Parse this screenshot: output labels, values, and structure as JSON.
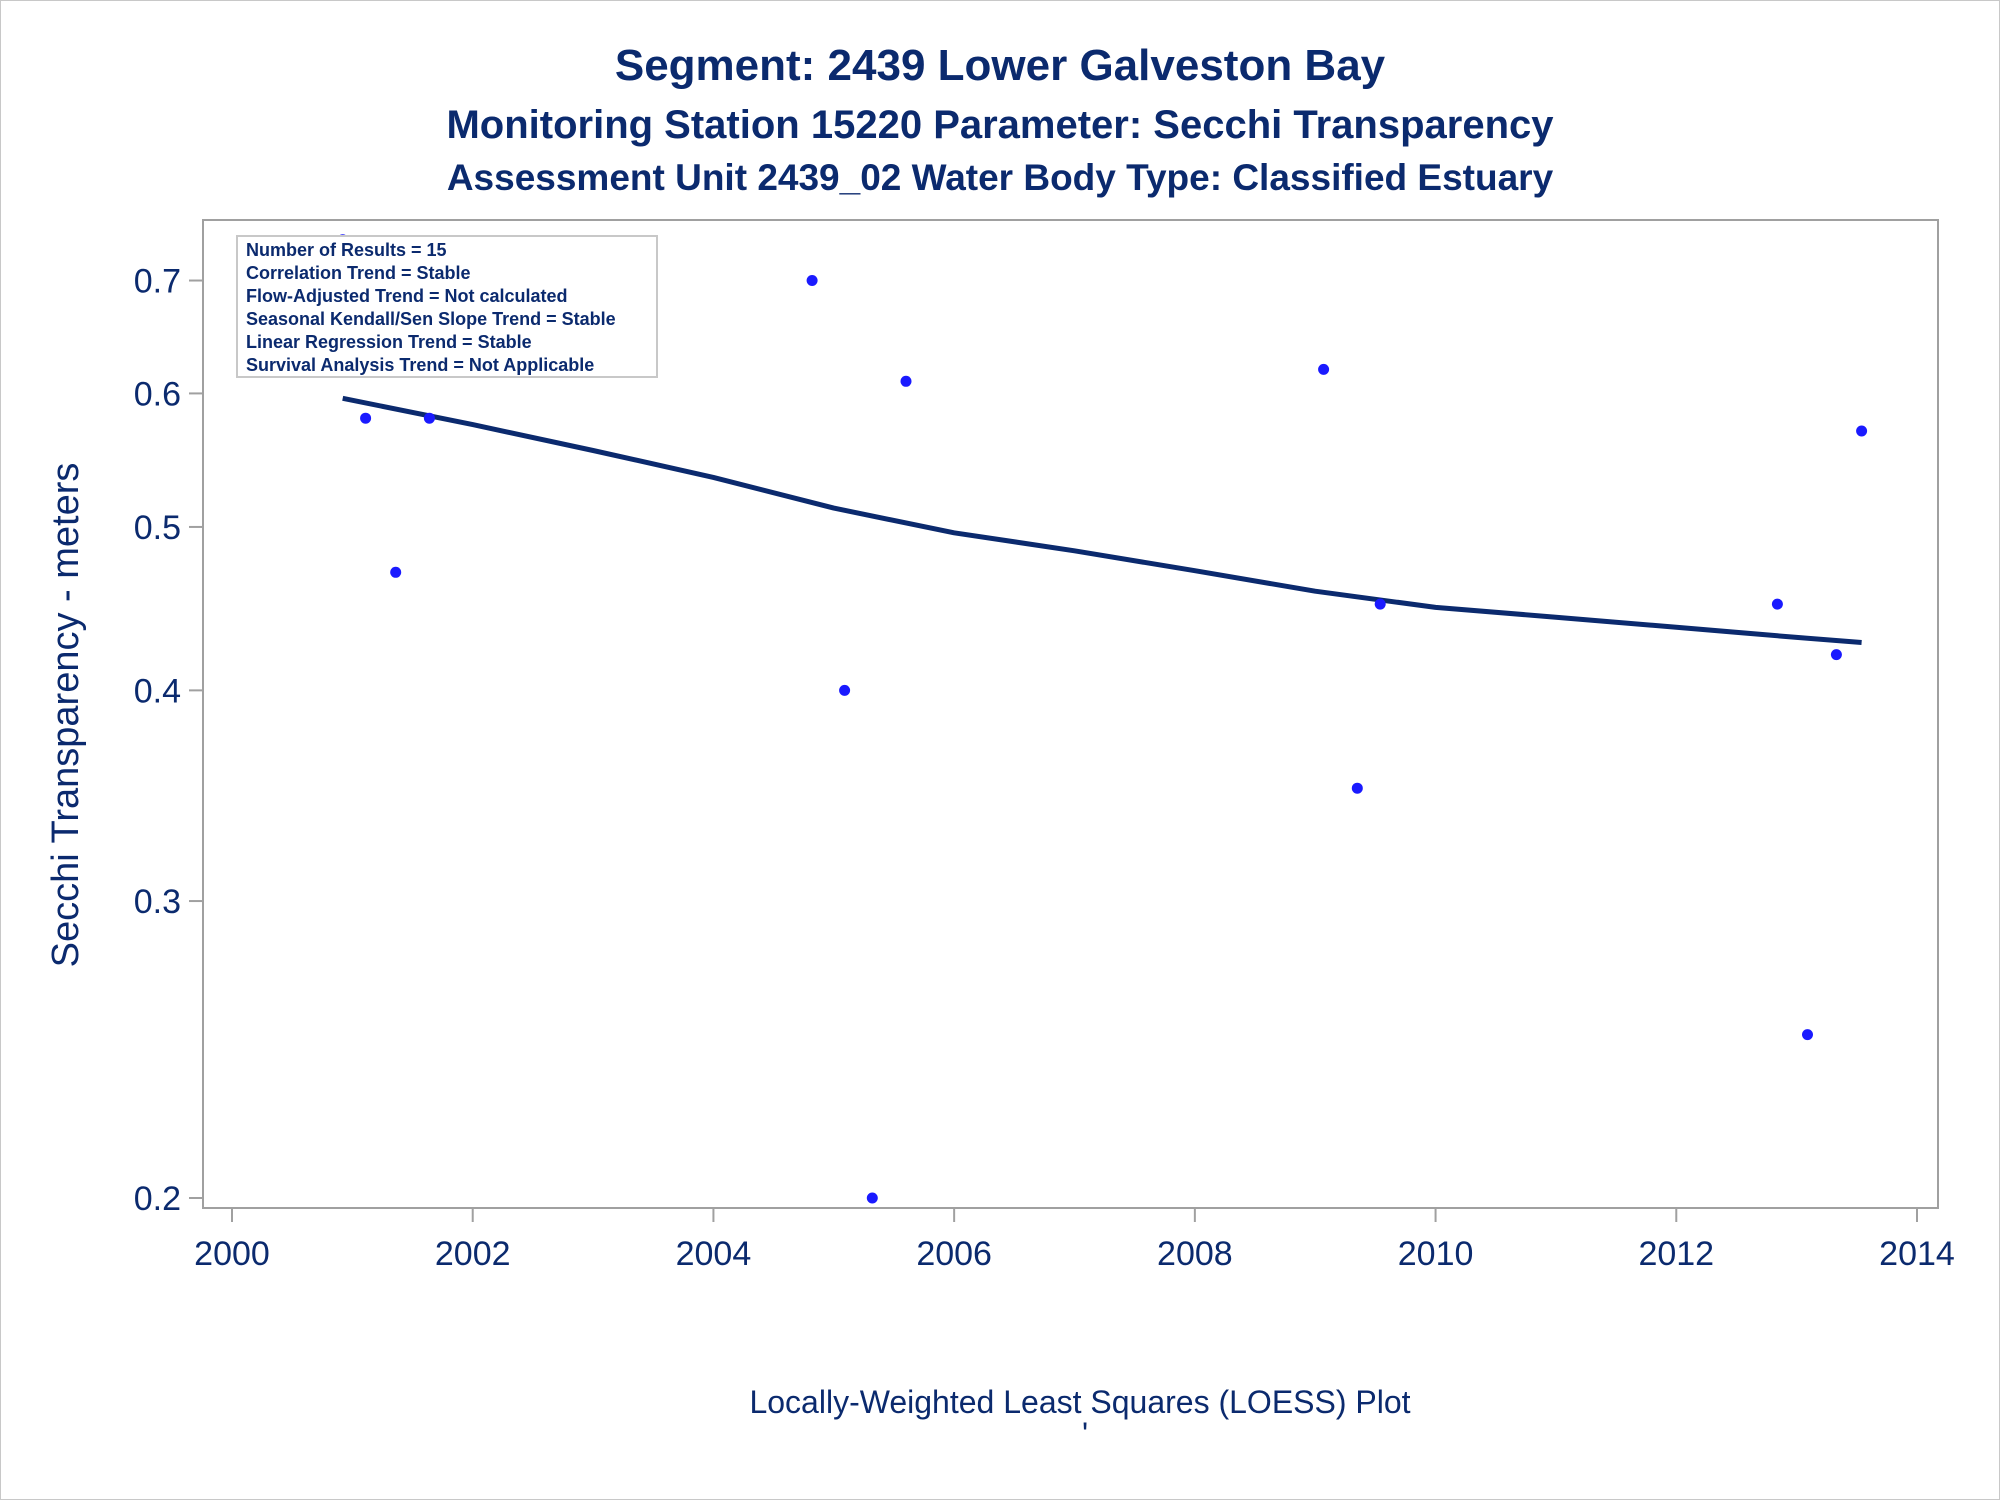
{
  "titles": {
    "line1": "Segment: 2439  Lower Galveston Bay",
    "line2": "Monitoring Station 15220 Parameter: Secchi Transparency",
    "line3": "Assessment Unit 2439_02   Water Body Type: Classified Estuary"
  },
  "stats_box": [
    "Number of Results = 15",
    "Correlation Trend = Stable",
    "Flow-Adjusted Trend = Not calculated",
    "Seasonal Kendall/Sen Slope Trend = Stable",
    "Linear Regression Trend = Stable",
    "Survival Analysis Trend = Not Applicable"
  ],
  "footnote": "Locally-Weighted Least Squares (LOESS) Plot",
  "footnote_mark": "'",
  "colors": {
    "text": "#0b2a6e",
    "points": "#1a1aff",
    "loess_line": "#0b2a6e",
    "frame": "#a0a0a0"
  },
  "chart_data": {
    "type": "scatter",
    "xlabel": "",
    "ylabel": "Secchi Transparency - meters",
    "y_scale": "log",
    "xlim": [
      2000,
      2014
    ],
    "ylim": [
      0.2,
      0.75
    ],
    "xticks": [
      2000,
      2002,
      2004,
      2006,
      2008,
      2010,
      2012,
      2014
    ],
    "xtick_labels": [
      "2000",
      "2002",
      "2004",
      "2006",
      "2008",
      "2010",
      "2012",
      "2014"
    ],
    "yticks": [
      0.2,
      0.3,
      0.4,
      0.5,
      0.6,
      0.7
    ],
    "ytick_labels": [
      "0.2",
      "0.3",
      "0.4",
      "0.5",
      "0.6",
      "0.7"
    ],
    "grid": false,
    "series": [
      {
        "type": "scatter",
        "points": [
          {
            "x": 2000.92,
            "y": 0.74
          },
          {
            "x": 2001.11,
            "y": 0.58
          },
          {
            "x": 2001.36,
            "y": 0.47
          },
          {
            "x": 2001.64,
            "y": 0.58
          },
          {
            "x": 2004.82,
            "y": 0.7
          },
          {
            "x": 2005.09,
            "y": 0.4
          },
          {
            "x": 2005.32,
            "y": 0.2
          },
          {
            "x": 2005.6,
            "y": 0.61
          },
          {
            "x": 2009.07,
            "y": 0.62
          },
          {
            "x": 2009.35,
            "y": 0.35
          },
          {
            "x": 2009.54,
            "y": 0.45
          },
          {
            "x": 2012.84,
            "y": 0.45
          },
          {
            "x": 2013.09,
            "y": 0.25
          },
          {
            "x": 2013.33,
            "y": 0.42
          },
          {
            "x": 2013.54,
            "y": 0.57
          }
        ]
      },
      {
        "type": "line",
        "points": [
          {
            "x": 2000.92,
            "y": 0.596
          },
          {
            "x": 2002.0,
            "y": 0.575
          },
          {
            "x": 2003.0,
            "y": 0.555
          },
          {
            "x": 2004.0,
            "y": 0.535
          },
          {
            "x": 2005.0,
            "y": 0.513
          },
          {
            "x": 2006.0,
            "y": 0.496
          },
          {
            "x": 2007.0,
            "y": 0.484
          },
          {
            "x": 2008.0,
            "y": 0.471
          },
          {
            "x": 2009.0,
            "y": 0.458
          },
          {
            "x": 2010.0,
            "y": 0.448
          },
          {
            "x": 2011.0,
            "y": 0.442
          },
          {
            "x": 2012.0,
            "y": 0.436
          },
          {
            "x": 2013.0,
            "y": 0.43
          },
          {
            "x": 2013.54,
            "y": 0.427
          }
        ]
      }
    ]
  }
}
